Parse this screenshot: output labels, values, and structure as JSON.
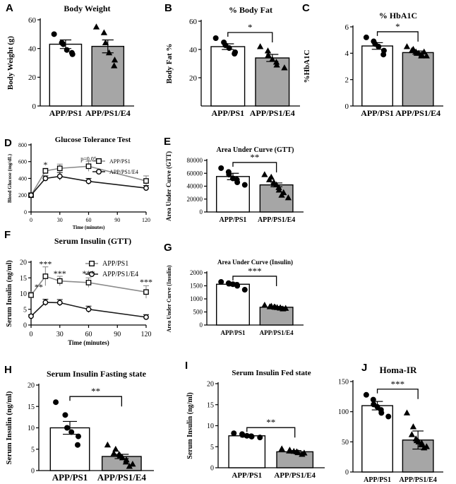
{
  "colors": {
    "control_bar": "#ffffff",
    "e4_bar": "#a6a6a6",
    "line_control": "#8c8c8c",
    "line_e4": "#1a1a1a"
  },
  "chart_data": [
    {
      "id": "A",
      "type": "bar",
      "title": "Body Weight",
      "ylabel": "Body Weight (g)",
      "ylim": [
        0,
        60
      ],
      "yticks": [
        0,
        20,
        40,
        60
      ],
      "categories": [
        "APP/PS1",
        "APP/PS1/E4"
      ],
      "values": [
        43,
        41.5
      ],
      "errors": [
        3,
        4.5
      ],
      "points": [
        [
          50,
          44,
          43,
          39,
          36,
          37
        ],
        [
          55,
          51,
          44,
          37,
          32,
          28
        ]
      ],
      "markers": [
        "circle",
        "triangle"
      ],
      "sig": ""
    },
    {
      "id": "B",
      "type": "bar",
      "title": "% Body Fat",
      "ylabel": "Body Fat %",
      "ylim": [
        0,
        60
      ],
      "yticks": [
        20,
        40,
        60
      ],
      "categories": [
        "APP/PS1",
        "APP/PS1/E4"
      ],
      "values": [
        42,
        34
      ],
      "errors": [
        2,
        2.5
      ],
      "points": [
        [
          48,
          45,
          43,
          41,
          38,
          37
        ],
        [
          42,
          39,
          36,
          33,
          31,
          29,
          27
        ]
      ],
      "markers": [
        "circle",
        "triangle"
      ],
      "sig": "*"
    },
    {
      "id": "C",
      "type": "bar",
      "title": "% HbA1C",
      "ylabel": "%HbA1C",
      "ylim": [
        0,
        6
      ],
      "yticks": [
        0,
        2,
        4,
        6
      ],
      "categories": [
        "APP/PS1",
        "APP/PS1/E4"
      ],
      "values": [
        4.55,
        4.05
      ],
      "errors": [
        0.25,
        0.12
      ],
      "points": [
        [
          5.2,
          4.9,
          4.7,
          4.5,
          4.2,
          3.9
        ],
        [
          4.5,
          4.3,
          4.2,
          4.1,
          4.0,
          4.0,
          3.9,
          3.8,
          3.8,
          4.1
        ]
      ],
      "markers": [
        "circle",
        "triangle"
      ],
      "sig": "*"
    },
    {
      "id": "D",
      "type": "line",
      "title": "Glucose Tolerance Test",
      "ylabel": "Blood Glucose (mg/dL)",
      "xlabel": "Time (minutes)",
      "x": [
        0,
        15,
        30,
        60,
        120
      ],
      "xticks": [
        0,
        30,
        60,
        90,
        120
      ],
      "ylim": [
        0,
        800
      ],
      "yticks": [
        0,
        200,
        400,
        600,
        800
      ],
      "series": [
        {
          "name": "APP/PS1",
          "values": [
            200,
            490,
            520,
            545,
            370
          ],
          "errors": [
            0,
            30,
            50,
            60,
            60
          ],
          "marker": "square"
        },
        {
          "name": "APP/PS1/E4",
          "values": [
            200,
            400,
            425,
            365,
            285
          ],
          "errors": [
            0,
            30,
            45,
            35,
            30
          ],
          "marker": "circle"
        }
      ],
      "annotations": [
        {
          "x": 15,
          "y": 530,
          "text": "*"
        },
        {
          "x": 60,
          "y": 612,
          "text": "p=0.05"
        }
      ]
    },
    {
      "id": "E",
      "type": "bar",
      "title": "Area Under Curve (GTT)",
      "ylabel": "Area Under Curve (GTT)",
      "ylim": [
        0,
        80000
      ],
      "yticks": [
        0,
        20000,
        40000,
        60000,
        80000
      ],
      "categories": [
        "APP/PS1",
        "APP/PS1/E4"
      ],
      "values": [
        55000,
        42000
      ],
      "errors": [
        5000,
        3000
      ],
      "points": [
        [
          68000,
          62000,
          58000,
          52000,
          50000,
          46000,
          42000
        ],
        [
          58000,
          54000,
          50000,
          46000,
          44000,
          42000,
          38000,
          34000,
          30000,
          26000,
          22000
        ]
      ],
      "markers": [
        "circle",
        "triangle"
      ],
      "sig": "**"
    },
    {
      "id": "F",
      "type": "line",
      "title": "Serum Insulin (GTT)",
      "ylabel": "Serum Insulin (ng/ml)",
      "xlabel": "Time (minutes)",
      "x": [
        0,
        15,
        30,
        60,
        120
      ],
      "xticks": [
        0,
        30,
        60,
        90,
        120
      ],
      "ylim": [
        0,
        20
      ],
      "yticks": [
        0,
        5,
        10,
        15,
        20
      ],
      "series": [
        {
          "name": "APP/PS1",
          "values": [
            9.5,
            15.5,
            14,
            13.5,
            10.5
          ],
          "errors": [
            1,
            3,
            1.5,
            1.5,
            2
          ],
          "marker": "square"
        },
        {
          "name": "APP/PS1/E4",
          "values": [
            2.8,
            7.2,
            7.1,
            5,
            2.5
          ],
          "errors": [
            0.5,
            1,
            1,
            1,
            0.8
          ],
          "marker": "circle"
        }
      ],
      "annotations": [
        {
          "x": 8,
          "y": 11.2,
          "text": "**"
        },
        {
          "x": 15,
          "y": 18.5,
          "text": "***"
        },
        {
          "x": 30,
          "y": 15.5,
          "text": "***"
        },
        {
          "x": 60,
          "y": 15.5,
          "text": "***"
        },
        {
          "x": 120,
          "y": 12.8,
          "text": "***"
        }
      ]
    },
    {
      "id": "G",
      "type": "bar",
      "title": "Area Under Curve (Insulin)",
      "ylabel": "Area Under Curve (Insulin)",
      "ylim": [
        0,
        2000
      ],
      "yticks": [
        0,
        500,
        1000,
        1500,
        2000
      ],
      "categories": [
        "APP/PS1",
        "APP/PS1/E4"
      ],
      "values": [
        1560,
        680
      ],
      "errors": [
        60,
        30
      ],
      "points": [
        [
          1650,
          1600,
          1580,
          1560,
          1540,
          1500,
          1350
        ],
        [
          760,
          720,
          700,
          690,
          680,
          670,
          660,
          650,
          640,
          620
        ]
      ],
      "markers": [
        "circle",
        "triangle"
      ],
      "sig": "***"
    },
    {
      "id": "H",
      "type": "bar",
      "title": "Serum Insulin Fasting state",
      "ylabel": "Serum Insulin (ng/ml)",
      "ylim": [
        0,
        20
      ],
      "yticks": [
        0,
        5,
        10,
        15,
        20
      ],
      "categories": [
        "APP/PS1",
        "APP/PS1/E4"
      ],
      "values": [
        10,
        3.3
      ],
      "errors": [
        1.5,
        0.5
      ],
      "points": [
        [
          16,
          13,
          10,
          9,
          8,
          6
        ],
        [
          6,
          5,
          4,
          3.8,
          3.5,
          3,
          2.5,
          2,
          1.5,
          1
        ]
      ],
      "markers": [
        "circle",
        "triangle"
      ],
      "sig": "**"
    },
    {
      "id": "I",
      "type": "bar",
      "title": "Serum Insulin Fed state",
      "ylabel": "Serum Insulin (ng/ml)",
      "ylim": [
        0,
        20
      ],
      "yticks": [
        0,
        5,
        10,
        15,
        20
      ],
      "categories": [
        "APP/PS1",
        "APP/PS1/E4"
      ],
      "values": [
        7.6,
        3.8
      ],
      "errors": [
        0.3,
        0.3
      ],
      "points": [
        [
          8.2,
          8,
          7.8,
          7.6,
          7.5,
          7.4,
          7.2
        ],
        [
          4.5,
          4.2,
          4,
          3.9,
          3.8,
          3.6,
          3.5,
          3.2
        ]
      ],
      "markers": [
        "circle",
        "triangle"
      ],
      "sig": "**"
    },
    {
      "id": "J",
      "type": "bar",
      "title": "Homa-IR",
      "ylabel": "HOMA-IR",
      "ylim": [
        0,
        150
      ],
      "yticks": [
        0,
        50,
        100,
        150
      ],
      "categories": [
        "APP/PS1",
        "APP/PS1/E4"
      ],
      "values": [
        110,
        53
      ],
      "errors": [
        7,
        15
      ],
      "points": [
        [
          128,
          120,
          112,
          108,
          103,
          98,
          92
        ],
        [
          98,
          75,
          62,
          55,
          52,
          50,
          48,
          45,
          42,
          40
        ]
      ],
      "markers": [
        "circle",
        "triangle"
      ],
      "sig": "***"
    }
  ]
}
